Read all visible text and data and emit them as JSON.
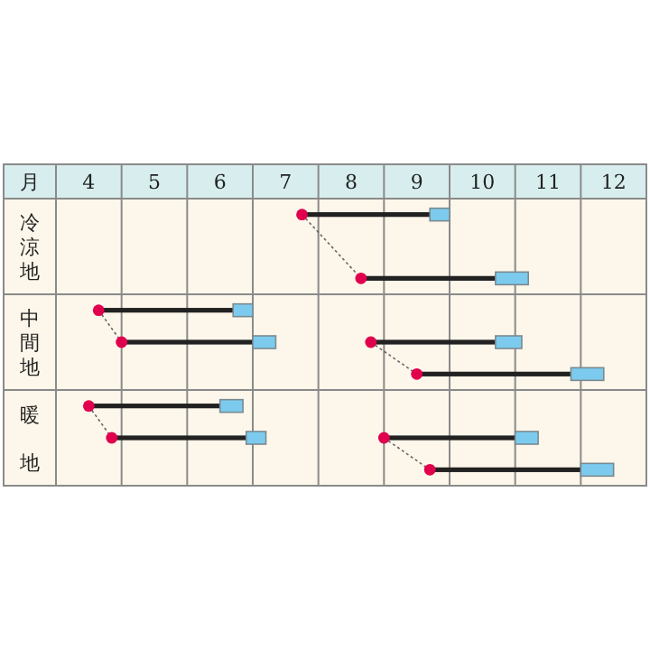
{
  "chart_data": {
    "type": "bar",
    "orientation": "horizontal",
    "xlabel": "月",
    "categories": [
      null,
      "冷涼地",
      null,
      null,
      "中間地",
      null,
      null,
      "暖地",
      null
    ],
    "xlim": [
      3.5,
      12.5
    ],
    "xticks": [
      {
        "value": 3.5,
        "label": null
      },
      4,
      {
        "value": 4.5,
        "label": null
      },
      5,
      {
        "value": 5.5,
        "label": null
      },
      6,
      {
        "value": 6.5,
        "label": null
      },
      7,
      {
        "value": 7.5,
        "label": null
      },
      8,
      {
        "value": 8.5,
        "label": null
      },
      9,
      {
        "value": 9.5,
        "label": null
      },
      10,
      {
        "value": 10.5,
        "label": null
      },
      11,
      {
        "value": 11.5,
        "label": null
      },
      12,
      {
        "value": 12.5,
        "label": null
      }
    ],
    "grid": true,
    "series": [
      {
        "color": "#222222",
        "line_style": "solid",
        "base": [
          null,
          null,
          null,
          4.15,
          4.5,
          null,
          4.0,
          4.35,
          null
        ],
        "values": [
          null,
          null,
          null,
          2.05,
          2.0,
          null,
          2.0,
          2.05,
          null
        ]
      },
      {
        "color": "#7ccbef",
        "base": [
          null,
          null,
          null,
          6.2,
          6.5,
          null,
          6.0,
          6.4,
          null
        ],
        "values": [
          null,
          null,
          null,
          0.3,
          0.35,
          null,
          0.35,
          0.3,
          null
        ]
      },
      {
        "color": "#222222",
        "line_style": "solid",
        "base": [
          7.25,
          null,
          8.15,
          null,
          8.3,
          9.0,
          null,
          8.5,
          9.2
        ],
        "values": [
          1.95,
          null,
          2.05,
          null,
          1.9,
          2.35,
          null,
          2.0,
          2.3
        ]
      },
      {
        "color": "#7ccbef",
        "base": [
          9.2,
          null,
          10.2,
          null,
          10.2,
          11.35,
          null,
          10.5,
          11.5
        ],
        "values": [
          0.3,
          null,
          0.5,
          null,
          0.4,
          0.5,
          null,
          0.35,
          0.5
        ]
      },
      {
        "type": "scatter",
        "marker": "circle",
        "color": "#e0004d",
        "values": [
          null,
          null,
          null,
          4.15,
          4.5,
          null,
          4.0,
          4.35,
          null
        ]
      },
      {
        "type": "scatter",
        "marker": "circle",
        "color": "#e0004d",
        "values": [
          7.25,
          null,
          8.15,
          null,
          8.3,
          9.0,
          null,
          8.5,
          9.2
        ]
      }
    ]
  }
}
